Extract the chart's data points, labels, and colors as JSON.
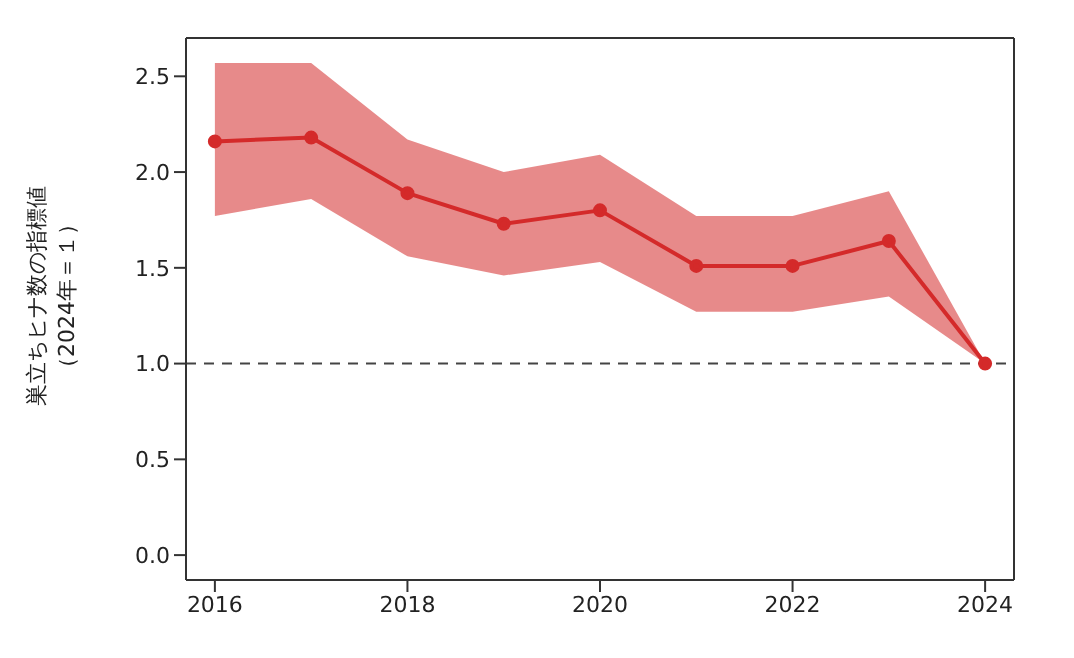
{
  "chart_data": {
    "type": "line",
    "ylabel": "巣立ちヒナ数の指標値（2024年＝１）",
    "x": [
      2016,
      2017,
      2018,
      2019,
      2020,
      2021,
      2022,
      2023,
      2024
    ],
    "series": [
      {
        "color": "#d42a2a",
        "values": [
          2.16,
          2.18,
          1.89,
          1.73,
          1.8,
          1.51,
          1.51,
          1.64,
          1.0
        ],
        "lower": [
          1.77,
          1.86,
          1.56,
          1.46,
          1.53,
          1.27,
          1.27,
          1.35,
          1.0
        ],
        "upper": [
          2.57,
          2.57,
          2.17,
          2.0,
          2.09,
          1.77,
          1.77,
          1.9,
          1.0
        ]
      }
    ],
    "xlim": [
      2015.7,
      2024.3
    ],
    "xticks": [
      2016,
      2018,
      2020,
      2022,
      2024
    ],
    "ylim": [
      -0.13,
      2.7
    ],
    "yticks": [
      {
        "value": 0,
        "label": "0.0"
      },
      {
        "value": 0.5,
        "label": "0.5"
      },
      {
        "value": 1,
        "label": "1.0"
      },
      {
        "value": 1.5,
        "label": "1.5"
      },
      {
        "value": 2,
        "label": "2.0"
      },
      {
        "value": 2.5,
        "label": "2.5"
      }
    ],
    "ref_lines": [
      {
        "axis": "y",
        "value": 1,
        "color": "#444444",
        "line_style": "dashed"
      }
    ],
    "marker": "circle",
    "line_style": "solid",
    "grid": false,
    "legend": false
  }
}
